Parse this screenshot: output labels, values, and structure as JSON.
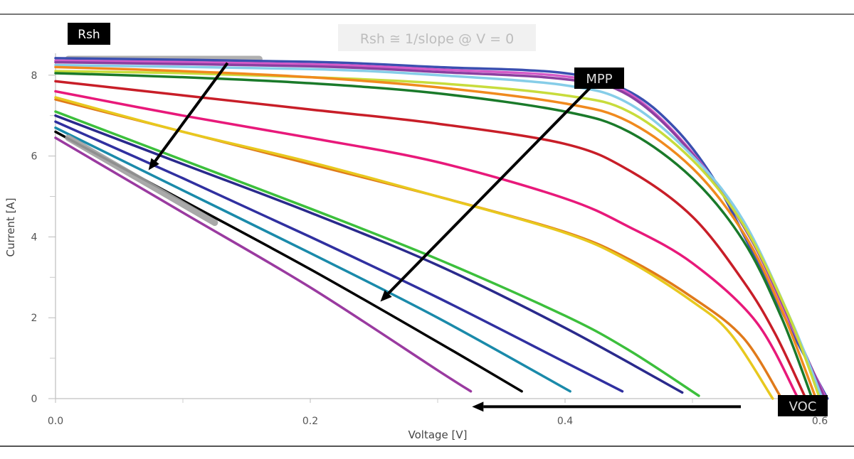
{
  "chart_data": {
    "type": "line",
    "title": "",
    "xlabel": "Voltage [V]",
    "ylabel": "Current [A]",
    "xlim": [
      0,
      0.6
    ],
    "ylim": [
      0,
      8.5
    ],
    "x_ticks": [
      0.0,
      0.2,
      0.4,
      0.6
    ],
    "x_tick_labels": [
      "0.0",
      "0.2",
      "0.4",
      "0.6"
    ],
    "x_minor_ticks": [
      0.1,
      0.3,
      0.5
    ],
    "y_ticks": [
      0,
      2,
      4,
      6,
      8
    ],
    "y_tick_labels": [
      "0",
      "2",
      "4",
      "6",
      "8"
    ],
    "y_minor_ticks": [
      1,
      3,
      5,
      7
    ],
    "grid": false,
    "legend": "none",
    "series": [
      {
        "color": "#3a4fb0",
        "points": [
          [
            0,
            8.42
          ],
          [
            0.2,
            8.33
          ],
          [
            0.3,
            8.2
          ],
          [
            0.4,
            8.05
          ],
          [
            0.45,
            7.6
          ],
          [
            0.486,
            6.7
          ],
          [
            0.516,
            5.47
          ],
          [
            0.542,
            3.94
          ],
          [
            0.579,
            1.6
          ],
          [
            0.606,
            0
          ]
        ]
      },
      {
        "color": "#d45bc8",
        "points": [
          [
            0,
            8.36
          ],
          [
            0.2,
            8.27
          ],
          [
            0.3,
            8.14
          ],
          [
            0.4,
            7.97
          ],
          [
            0.45,
            7.55
          ],
          [
            0.5,
            6.08
          ],
          [
            0.545,
            4.0
          ],
          [
            0.58,
            1.65
          ],
          [
            0.605,
            0
          ]
        ]
      },
      {
        "color": "#8b3fa0",
        "points": [
          [
            0,
            8.32
          ],
          [
            0.2,
            8.22
          ],
          [
            0.3,
            8.08
          ],
          [
            0.4,
            7.9
          ],
          [
            0.45,
            7.5
          ],
          [
            0.5,
            6.05
          ],
          [
            0.545,
            4.0
          ],
          [
            0.58,
            1.7
          ],
          [
            0.604,
            0
          ]
        ]
      },
      {
        "color": "#86cde8",
        "points": [
          [
            0,
            8.25
          ],
          [
            0.2,
            8.15
          ],
          [
            0.3,
            8.0
          ],
          [
            0.4,
            7.75
          ],
          [
            0.45,
            7.3
          ],
          [
            0.5,
            6.0
          ],
          [
            0.54,
            4.4
          ],
          [
            0.578,
            1.9
          ],
          [
            0.602,
            0
          ]
        ]
      },
      {
        "color": "#c8dc3c",
        "points": [
          [
            0,
            8.1
          ],
          [
            0.1,
            8.05
          ],
          [
            0.2,
            7.95
          ],
          [
            0.3,
            7.8
          ],
          [
            0.4,
            7.5
          ],
          [
            0.45,
            7.1
          ],
          [
            0.5,
            5.9
          ],
          [
            0.54,
            4.3
          ],
          [
            0.575,
            2.1
          ],
          [
            0.6,
            0
          ]
        ]
      },
      {
        "color": "#f08a1e",
        "points": [
          [
            0,
            8.2
          ],
          [
            0.1,
            8.1
          ],
          [
            0.2,
            7.95
          ],
          [
            0.3,
            7.7
          ],
          [
            0.4,
            7.3
          ],
          [
            0.45,
            6.85
          ],
          [
            0.5,
            5.7
          ],
          [
            0.54,
            4.1
          ],
          [
            0.57,
            2.2
          ],
          [
            0.597,
            0
          ]
        ]
      },
      {
        "color": "#1a7a2a",
        "points": [
          [
            0,
            8.05
          ],
          [
            0.1,
            7.95
          ],
          [
            0.2,
            7.8
          ],
          [
            0.3,
            7.55
          ],
          [
            0.4,
            7.1
          ],
          [
            0.45,
            6.6
          ],
          [
            0.5,
            5.45
          ],
          [
            0.54,
            3.9
          ],
          [
            0.57,
            2.0
          ],
          [
            0.594,
            0
          ]
        ]
      },
      {
        "color": "#c81e28",
        "points": [
          [
            0,
            7.85
          ],
          [
            0.1,
            7.5
          ],
          [
            0.2,
            7.15
          ],
          [
            0.3,
            6.8
          ],
          [
            0.4,
            6.3
          ],
          [
            0.45,
            5.65
          ],
          [
            0.5,
            4.5
          ],
          [
            0.54,
            2.9
          ],
          [
            0.565,
            1.6
          ],
          [
            0.589,
            0
          ]
        ]
      },
      {
        "color": "#e8197a",
        "points": [
          [
            0,
            7.6
          ],
          [
            0.1,
            7.0
          ],
          [
            0.2,
            6.45
          ],
          [
            0.3,
            5.85
          ],
          [
            0.4,
            4.95
          ],
          [
            0.45,
            4.25
          ],
          [
            0.5,
            3.35
          ],
          [
            0.55,
            1.9
          ],
          [
            0.583,
            0
          ]
        ]
      },
      {
        "color": "#e07a1a",
        "points": [
          [
            0,
            7.4
          ],
          [
            0.1,
            6.6
          ],
          [
            0.2,
            5.8
          ],
          [
            0.3,
            5.0
          ],
          [
            0.4,
            4.12
          ],
          [
            0.45,
            3.45
          ],
          [
            0.5,
            2.5
          ],
          [
            0.54,
            1.5
          ],
          [
            0.57,
            0
          ]
        ]
      },
      {
        "color": "#e8c81e",
        "points": [
          [
            0,
            7.45
          ],
          [
            0.1,
            6.6
          ],
          [
            0.2,
            5.85
          ],
          [
            0.3,
            5.0
          ],
          [
            0.4,
            4.1
          ],
          [
            0.45,
            3.4
          ],
          [
            0.5,
            2.4
          ],
          [
            0.53,
            1.6
          ],
          [
            0.563,
            0
          ]
        ]
      },
      {
        "color": "#3cbf3c",
        "points": [
          [
            0,
            7.1
          ],
          [
            0.1,
            5.9
          ],
          [
            0.2,
            4.7
          ],
          [
            0.3,
            3.45
          ],
          [
            0.4,
            2.05
          ],
          [
            0.45,
            1.2
          ],
          [
            0.505,
            0.07
          ]
        ]
      },
      {
        "color": "#2a2a8c",
        "points": [
          [
            0,
            7.0
          ],
          [
            0.1,
            5.8
          ],
          [
            0.2,
            4.6
          ],
          [
            0.3,
            3.3
          ],
          [
            0.4,
            1.75
          ],
          [
            0.492,
            0.15
          ]
        ]
      },
      {
        "color": "#3030a0",
        "points": [
          [
            0,
            6.85
          ],
          [
            0.1,
            5.45
          ],
          [
            0.2,
            4.0
          ],
          [
            0.3,
            2.5
          ],
          [
            0.4,
            0.9
          ],
          [
            0.445,
            0.18
          ]
        ]
      },
      {
        "color": "#1a8aaa",
        "points": [
          [
            0,
            6.7
          ],
          [
            0.1,
            5.15
          ],
          [
            0.2,
            3.6
          ],
          [
            0.3,
            2.0
          ],
          [
            0.404,
            0.18
          ]
        ]
      },
      {
        "color": "#000000",
        "points": [
          [
            0,
            6.6
          ],
          [
            0.1,
            4.9
          ],
          [
            0.2,
            3.2
          ],
          [
            0.3,
            1.4
          ],
          [
            0.366,
            0.18
          ]
        ]
      },
      {
        "color": "#9a3aa0",
        "points": [
          [
            0,
            6.45
          ],
          [
            0.1,
            4.6
          ],
          [
            0.2,
            2.75
          ],
          [
            0.3,
            0.7
          ],
          [
            0.326,
            0.18
          ]
        ]
      }
    ],
    "annotations": {
      "rsh_label": "Rsh",
      "rsh_formula": "Rsh ≅ 1/slope @ V = 0",
      "mpp_label": "MPP",
      "voc_label": "VOC",
      "highlight_color": "#a8a8a8",
      "rsh_top_band": [
        [
          0.01,
          8.4
        ],
        [
          0.16,
          8.4
        ]
      ],
      "rsh_low_band": [
        [
          0.01,
          6.45
        ],
        [
          0.125,
          4.35
        ]
      ],
      "arrows": [
        {
          "name": "rsh-arrow",
          "from": [
            0.135,
            8.3
          ],
          "to": [
            0.073,
            5.65
          ]
        },
        {
          "name": "mpp-arrow",
          "from": [
            0.42,
            7.7
          ],
          "to": [
            0.255,
            2.4
          ]
        },
        {
          "name": "voc-arrow",
          "from": [
            0.538,
            -0.2
          ],
          "to": [
            0.327,
            -0.2
          ]
        }
      ]
    }
  }
}
